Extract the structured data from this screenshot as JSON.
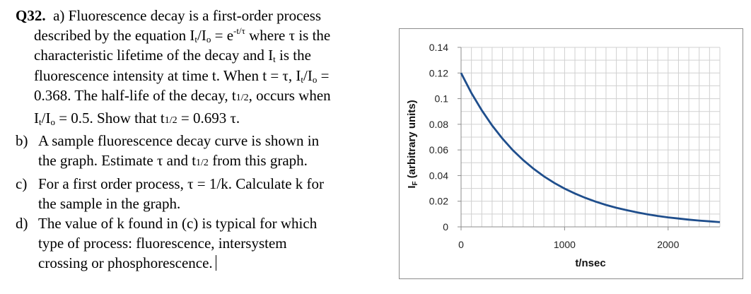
{
  "question": {
    "number": "Q32",
    "part_a": {
      "label": "a)",
      "line1": "Fluorescence decay is a first-order process",
      "line2a": "described by the equation I",
      "line2b": "t",
      "line2c": "/I",
      "line2d": "o",
      "line2e": " = e",
      "line2f": "-t/τ",
      "line2g": " where τ is the",
      "line3a": "characteristic lifetime of the decay and I",
      "line3b": "t",
      "line3c": " is the",
      "line4a": "fluorescence intensity at time t.  When t = τ, I",
      "line4b": "t",
      "line4c": "/I",
      "line4d": "o",
      "line4e": " =",
      "line5a": "0.368. The half-life of the decay, t",
      "line5b": "1/2",
      "line5c": ", occurs when",
      "line6a": "I",
      "line6b": "t",
      "line6c": "/I",
      "line6d": "o",
      "line6e": "  = 0.5.  Show that t",
      "line6f": "1/2",
      "line6g": " = 0.693 τ."
    },
    "part_b": {
      "label": "b)",
      "line1": "A sample fluorescence decay curve is shown in",
      "line2a": "the graph.  Estimate τ and t",
      "line2b": "1/2",
      "line2c": " from this graph."
    },
    "part_c": {
      "label": "c)",
      "line1": "For a first order process, τ = 1/k. Calculate k for",
      "line2": "the sample in the graph."
    },
    "part_d": {
      "label": "d)",
      "line1": "The value of k found in (c) is typical for which",
      "line2": "type of process: fluorescence, intersystem",
      "line3": "crossing or phosphorescence."
    }
  },
  "chart_data": {
    "type": "line",
    "xlabel": "t/nsec",
    "ylabel_main": "I",
    "ylabel_sub": "F",
    "ylabel_rest": " (arbitrary units)",
    "xlim": [
      0,
      2500
    ],
    "ylim": [
      0,
      0.14
    ],
    "x_ticks": [
      {
        "value": 0,
        "label": "0"
      },
      {
        "value": 1000,
        "label": "1000"
      },
      {
        "value": 2000,
        "label": "2000"
      }
    ],
    "y_ticks": [
      {
        "value": 0,
        "label": "0"
      },
      {
        "value": 0.02,
        "label": "0.02"
      },
      {
        "value": 0.04,
        "label": "0.04"
      },
      {
        "value": 0.06,
        "label": "0.06"
      },
      {
        "value": 0.08,
        "label": "0.08"
      },
      {
        "value": 0.1,
        "label": "0.1"
      },
      {
        "value": 0.12,
        "label": "0.12"
      },
      {
        "value": 0.14,
        "label": "0.14"
      }
    ],
    "grid": true,
    "grid_color": "#d0d0d0",
    "line_color": "#1f4e8c",
    "series": [
      {
        "x": [
          0,
          100,
          200,
          300,
          400,
          500,
          600,
          700,
          800,
          900,
          1000,
          1100,
          1200,
          1300,
          1400,
          1500,
          1600,
          1700,
          1800,
          1900,
          2000,
          2100,
          2200,
          2300,
          2400,
          2500
        ],
        "y": [
          0.12,
          0.1044,
          0.0909,
          0.0791,
          0.0688,
          0.0598,
          0.0521,
          0.0453,
          0.0394,
          0.0343,
          0.0298,
          0.026,
          0.0226,
          0.0197,
          0.0171,
          0.0149,
          0.013,
          0.0113,
          0.0098,
          0.0085,
          0.0074,
          0.0065,
          0.0056,
          0.0049,
          0.0043,
          0.0037
        ]
      }
    ]
  }
}
